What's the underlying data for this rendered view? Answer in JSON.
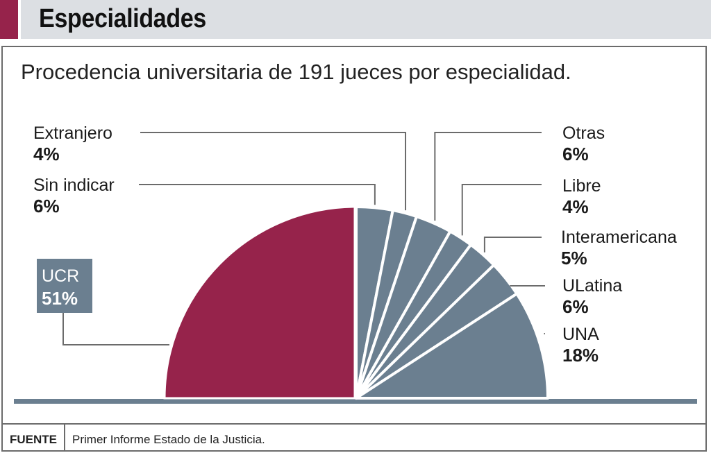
{
  "header": {
    "title": "Especialidades"
  },
  "footer": {
    "label": "FUENTE",
    "text": "Primer Informe Estado de la Justicia."
  },
  "colors": {
    "ucr": "#96234b",
    "others": "#6b7f90",
    "baseline": "#6b7f90",
    "accent": "#96234b"
  },
  "chart_data": {
    "type": "pie",
    "style": "semicircle",
    "title": "Procedencia universitaria de 191 jueces por especialidad.",
    "total_count": 191,
    "slices": [
      {
        "name": "UCR",
        "value": 51,
        "label": "UCR",
        "pct_label": "51%",
        "highlight": true
      },
      {
        "name": "Sin indicar",
        "value": 6,
        "label": "Sin indicar",
        "pct_label": "6%"
      },
      {
        "name": "Extranjero",
        "value": 4,
        "label": "Extranjero",
        "pct_label": "4%"
      },
      {
        "name": "Otras",
        "value": 6,
        "label": "Otras",
        "pct_label": "6%"
      },
      {
        "name": "Libre",
        "value": 4,
        "label": "Libre",
        "pct_label": "4%"
      },
      {
        "name": "Interamericana",
        "value": 5,
        "label": "Interamericana",
        "pct_label": "5%"
      },
      {
        "name": "ULatina",
        "value": 6,
        "label": "ULatina",
        "pct_label": "6%"
      },
      {
        "name": "UNA",
        "value": 18,
        "label": "UNA",
        "pct_label": "18%"
      }
    ],
    "unit": "%"
  }
}
